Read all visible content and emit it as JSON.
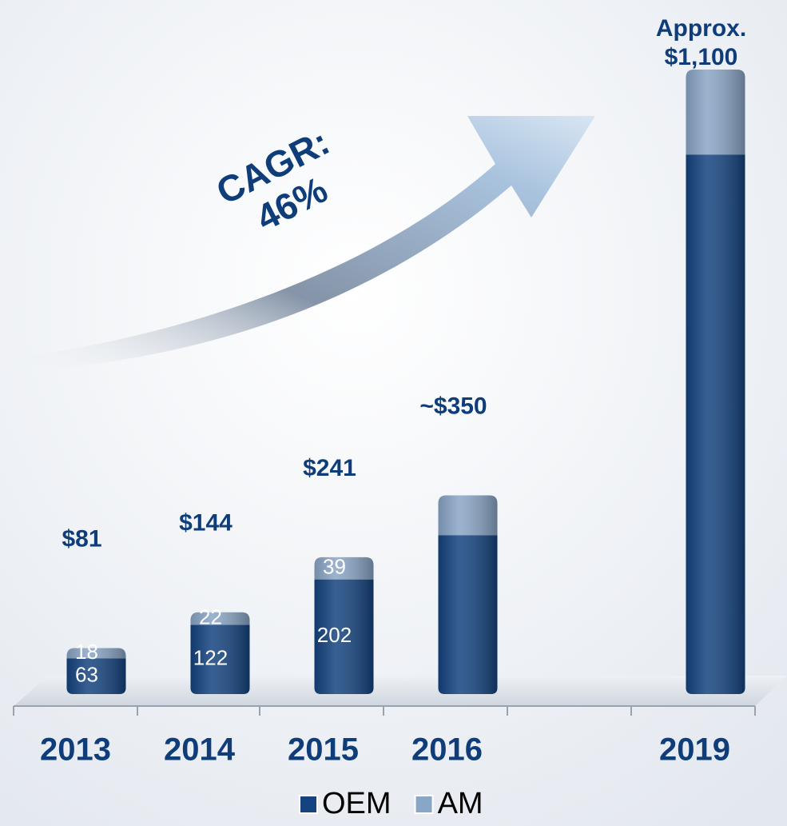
{
  "chart_data": {
    "type": "stacked_bar",
    "categories": [
      "2013",
      "2014",
      "2015",
      "2016",
      null,
      "2019"
    ],
    "series": [
      {
        "name": "OEM",
        "color": "#14437f",
        "values": [
          63,
          122,
          202,
          280,
          null,
          950
        ],
        "value_labels": [
          "63",
          "122",
          "202",
          null,
          null,
          null
        ]
      },
      {
        "name": "AM",
        "color": "#8aa6c6",
        "values": [
          18,
          22,
          39,
          70,
          null,
          150
        ],
        "value_labels": [
          "18",
          "22",
          "39",
          null,
          null,
          null
        ]
      }
    ],
    "total_labels": [
      "$81",
      "$144",
      "$241",
      "~$350",
      null,
      "Approx.\n$1,100"
    ],
    "annotation": "CAGR:\n46%",
    "ylim": [
      0,
      1200
    ],
    "legend": "bottom"
  }
}
